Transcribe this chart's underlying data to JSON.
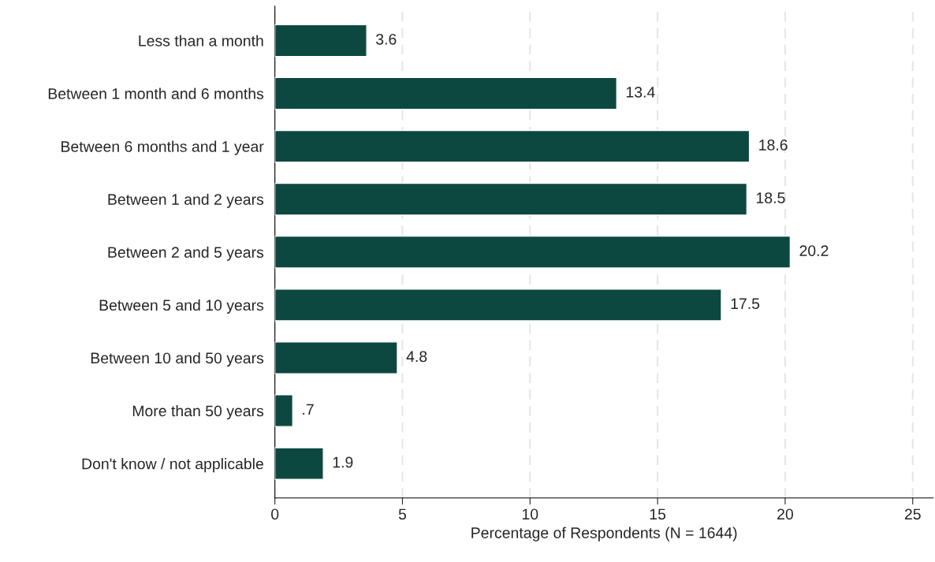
{
  "chart_data": {
    "type": "bar",
    "orientation": "horizontal",
    "xlabel": "Percentage of Respondents (N = 1644)",
    "categories": [
      "Less than a month",
      "Between 1 month and 6 months",
      "Between 6 months and 1 year",
      "Between 1 and 2 years",
      "Between 2 and 5 years",
      "Between 5 and 10 years",
      "Between 10 and 50 years",
      "More than 50 years",
      "Don't know / not applicable"
    ],
    "values": [
      3.6,
      13.4,
      18.6,
      18.5,
      20.2,
      17.5,
      4.8,
      0.7,
      1.9
    ],
    "value_labels": [
      "3.6",
      "13.4",
      "18.6",
      "18.5",
      "20.2",
      "17.5",
      "4.8",
      ".7",
      "1.9"
    ],
    "color": "#0d4840",
    "xlim": [
      0,
      25.8
    ],
    "xticks": [
      0,
      5,
      10,
      15,
      20,
      25
    ],
    "grid": "x",
    "legend": false
  }
}
